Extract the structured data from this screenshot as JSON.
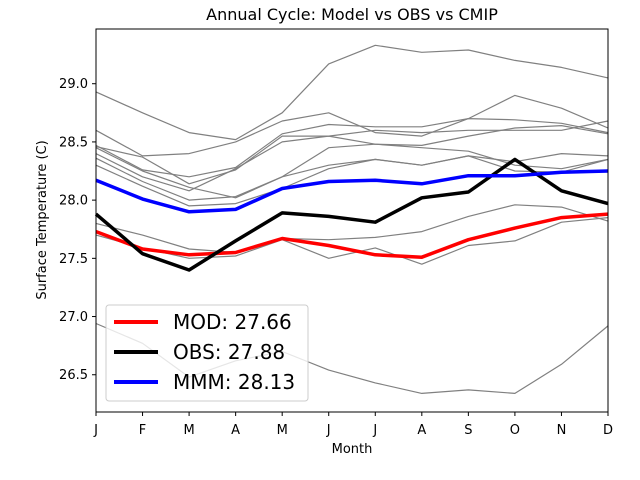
{
  "chart_data": {
    "type": "line",
    "title": "Annual Cycle: Model vs OBS vs CMIP",
    "xlabel": "Month",
    "ylabel": "Surface Temperature (C)",
    "categories": [
      "J",
      "F",
      "M",
      "A",
      "M",
      "J",
      "J",
      "A",
      "S",
      "O",
      "N",
      "D"
    ],
    "ylim": [
      26.18,
      29.47
    ],
    "yticks": [
      26.5,
      27.0,
      27.5,
      28.0,
      28.5,
      29.0
    ],
    "ytick_labels": [
      "26.5",
      "27.0",
      "27.5",
      "28.0",
      "28.5",
      "29.0"
    ],
    "grid": false,
    "legend_position": "lower-left",
    "ensemble_color": "#808080",
    "ensemble": [
      [
        28.93,
        28.75,
        28.58,
        28.52,
        28.75,
        29.17,
        29.33,
        29.27,
        29.29,
        29.2,
        29.14,
        29.05
      ],
      [
        28.6,
        28.38,
        28.4,
        28.5,
        28.68,
        28.75,
        28.58,
        28.55,
        28.7,
        28.9,
        28.79,
        28.62
      ],
      [
        28.47,
        28.26,
        28.2,
        28.28,
        28.57,
        28.65,
        28.63,
        28.63,
        28.7,
        28.69,
        28.66,
        28.58
      ],
      [
        28.46,
        28.37,
        28.14,
        28.26,
        28.55,
        28.55,
        28.6,
        28.58,
        28.6,
        28.6,
        28.6,
        28.68
      ],
      [
        28.45,
        28.25,
        28.11,
        28.02,
        28.2,
        28.45,
        28.48,
        28.47,
        28.55,
        28.62,
        28.64,
        28.57
      ],
      [
        28.4,
        28.2,
        28.08,
        28.27,
        28.5,
        28.55,
        28.48,
        28.45,
        28.42,
        28.3,
        28.27,
        28.35
      ],
      [
        28.36,
        28.16,
        28.0,
        28.03,
        28.2,
        28.3,
        28.35,
        28.3,
        28.38,
        28.33,
        28.4,
        28.38
      ],
      [
        28.3,
        28.12,
        27.95,
        27.97,
        28.1,
        28.27,
        28.35,
        28.3,
        28.38,
        28.25,
        28.24,
        28.35
      ],
      [
        27.8,
        27.7,
        27.58,
        27.55,
        27.67,
        27.66,
        27.68,
        27.73,
        27.86,
        27.96,
        27.94,
        27.82
      ],
      [
        27.7,
        27.59,
        27.5,
        27.52,
        27.66,
        27.5,
        27.59,
        27.45,
        27.61,
        27.65,
        27.81,
        27.85
      ],
      [
        26.94,
        26.77,
        26.48,
        26.62,
        26.7,
        26.54,
        26.43,
        26.34,
        26.37,
        26.34,
        26.59,
        26.92
      ]
    ],
    "series": [
      {
        "name": "MOD",
        "color": "#ff0000",
        "values": [
          27.73,
          27.58,
          27.53,
          27.55,
          27.67,
          27.61,
          27.53,
          27.51,
          27.66,
          27.76,
          27.85,
          27.88
        ]
      },
      {
        "name": "OBS",
        "color": "#000000",
        "values": [
          27.88,
          27.54,
          27.4,
          27.65,
          27.89,
          27.86,
          27.81,
          28.02,
          28.07,
          28.35,
          28.08,
          27.97
        ]
      },
      {
        "name": "MMM",
        "color": "#0000ff",
        "values": [
          28.17,
          28.01,
          27.9,
          27.92,
          28.1,
          28.16,
          28.17,
          28.14,
          28.21,
          28.21,
          28.24,
          28.25
        ]
      }
    ],
    "legend": [
      {
        "label": "MOD: 27.66",
        "color": "#ff0000"
      },
      {
        "label": "OBS: 27.88",
        "color": "#000000"
      },
      {
        "label": "MMM: 28.13",
        "color": "#0000ff"
      }
    ]
  }
}
